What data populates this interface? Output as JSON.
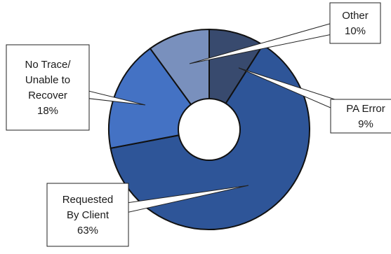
{
  "chart_data": {
    "type": "pie",
    "variant": "doughnut",
    "title": "",
    "slices": [
      {
        "label_lines": [
          "PA Error"
        ],
        "value": 9,
        "value_text": "9%",
        "color": "#384a6e"
      },
      {
        "label_lines": [
          "Requested",
          "By Client"
        ],
        "value": 63,
        "value_text": "63%",
        "color": "#2e5598"
      },
      {
        "label_lines": [
          "No Trace/",
          "Unable to",
          "Recover"
        ],
        "value": 18,
        "value_text": "18%",
        "color": "#4472c4"
      },
      {
        "label_lines": [
          "Other"
        ],
        "value": 10,
        "value_text": "10%",
        "color": "#7990bd"
      }
    ]
  }
}
